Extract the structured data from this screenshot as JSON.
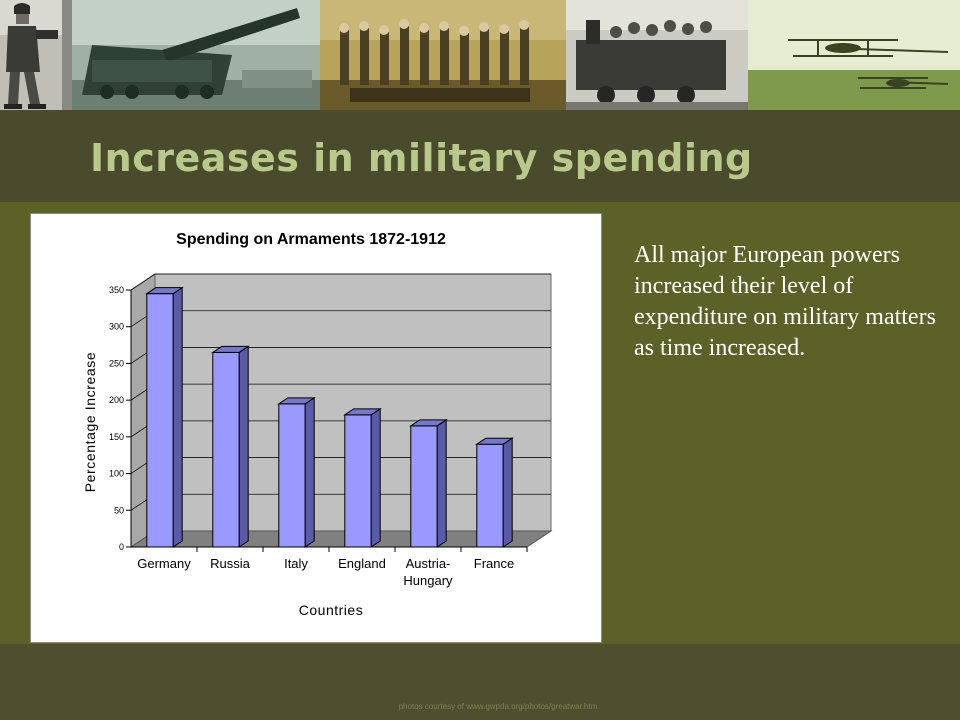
{
  "slide": {
    "title": "Increases in military spending",
    "body_text": "All major European powers increased their level of expenditure on  military matters as time increased.",
    "credit": "photos courtesy of www.gwpda.org/photos/greatwar.htm"
  },
  "photos": [
    {
      "icon": "soldier-photo-icon"
    },
    {
      "icon": "railway-gun-photo-icon"
    },
    {
      "icon": "gassed-soldiers-painting-icon"
    },
    {
      "icon": "troop-train-photo-icon"
    },
    {
      "icon": "biplanes-photo-icon"
    }
  ],
  "colors": {
    "background": "#5b6127",
    "title_band": "#4a4a2c",
    "title_text": "#b9c98c",
    "bar_front": "#9999ff",
    "bar_side": "#5a5aa6",
    "bar_top": "#7777cc",
    "plot_wall": "#c0c0c0",
    "plot_floor": "#808080"
  },
  "chart_data": {
    "type": "bar",
    "title": "Spending on Armaments 1872-1912",
    "xlabel": "Countries",
    "ylabel": "Percentage Increase",
    "categories": [
      [
        "Germany"
      ],
      [
        "Russia"
      ],
      [
        "Italy"
      ],
      [
        "England"
      ],
      [
        "Austria-",
        "Hungary"
      ],
      [
        "France"
      ]
    ],
    "values": [
      345,
      265,
      195,
      180,
      165,
      140
    ],
    "yticks": [
      0,
      50,
      100,
      150,
      200,
      250,
      300,
      350
    ],
    "ylim": [
      0,
      350
    ],
    "grid": true,
    "legend": "none",
    "style": "3d-column"
  }
}
